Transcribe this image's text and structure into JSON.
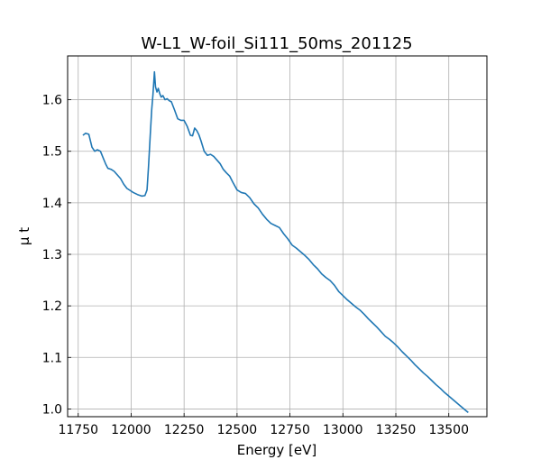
{
  "chart_data": {
    "type": "line",
    "title": "W-L1_W-foil_Si111_50ms_201125",
    "xlabel": "Energy [eV]",
    "ylabel": "μ t",
    "xlim": [
      11700,
      13680
    ],
    "ylim": [
      0.985,
      1.685
    ],
    "grid": true,
    "color": "#1f77b4",
    "xticks": [
      11750,
      12000,
      12250,
      12500,
      12750,
      13000,
      13250,
      13500
    ],
    "yticks": [
      1.0,
      1.1,
      1.2,
      1.3,
      1.4,
      1.5,
      1.6
    ],
    "series": [
      {
        "x": [
          11772,
          11785,
          11800,
          11815,
          11828,
          11840,
          11855,
          11868,
          11880,
          11890,
          11905,
          11920,
          11935,
          11950,
          11965,
          11980,
          11995,
          12010,
          12030,
          12050,
          12065,
          12075,
          12082,
          12090,
          12097,
          12103,
          12110,
          12115,
          12122,
          12128,
          12135,
          12142,
          12150,
          12160,
          12170,
          12180,
          12190,
          12205,
          12220,
          12235,
          12250,
          12265,
          12280,
          12290,
          12300,
          12310,
          12320,
          12330,
          12345,
          12360,
          12375,
          12390,
          12405,
          12420,
          12435,
          12450,
          12465,
          12480,
          12500,
          12520,
          12540,
          12560,
          12580,
          12600,
          12620,
          12640,
          12660,
          12680,
          12700,
          12720,
          12740,
          12760,
          12780,
          12800,
          12820,
          12840,
          12860,
          12880,
          12900,
          12920,
          12940,
          12960,
          12980,
          13000,
          13020,
          13040,
          13060,
          13080,
          13100,
          13120,
          13140,
          13160,
          13180,
          13200,
          13220,
          13240,
          13260,
          13280,
          13300,
          13320,
          13340,
          13360,
          13380,
          13400,
          13420,
          13440,
          13460,
          13480,
          13500,
          13520,
          13540,
          13560,
          13580,
          13592
        ],
        "y": [
          1.531,
          1.535,
          1.533,
          1.508,
          1.5,
          1.503,
          1.5,
          1.487,
          1.475,
          1.467,
          1.465,
          1.461,
          1.454,
          1.447,
          1.436,
          1.428,
          1.424,
          1.42,
          1.416,
          1.413,
          1.414,
          1.425,
          1.47,
          1.53,
          1.58,
          1.61,
          1.654,
          1.625,
          1.615,
          1.622,
          1.612,
          1.605,
          1.608,
          1.6,
          1.602,
          1.598,
          1.596,
          1.58,
          1.563,
          1.56,
          1.56,
          1.548,
          1.531,
          1.53,
          1.545,
          1.54,
          1.532,
          1.52,
          1.5,
          1.492,
          1.494,
          1.49,
          1.483,
          1.476,
          1.465,
          1.458,
          1.452,
          1.44,
          1.425,
          1.42,
          1.418,
          1.41,
          1.398,
          1.39,
          1.378,
          1.368,
          1.36,
          1.356,
          1.352,
          1.34,
          1.33,
          1.318,
          1.312,
          1.305,
          1.298,
          1.29,
          1.28,
          1.272,
          1.262,
          1.255,
          1.249,
          1.24,
          1.228,
          1.22,
          1.212,
          1.205,
          1.198,
          1.192,
          1.184,
          1.175,
          1.167,
          1.159,
          1.15,
          1.141,
          1.135,
          1.128,
          1.12,
          1.111,
          1.103,
          1.095,
          1.086,
          1.078,
          1.07,
          1.063,
          1.055,
          1.047,
          1.04,
          1.032,
          1.025,
          1.018,
          1.011,
          1.004,
          0.997,
          0.993
        ]
      }
    ]
  }
}
